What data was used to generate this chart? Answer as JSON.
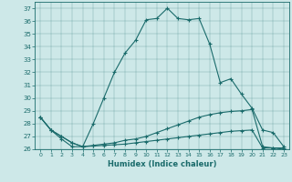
{
  "xlabel": "Humidex (Indice chaleur)",
  "bg_color": "#cde8e8",
  "line_color": "#1a6b6b",
  "xlim": [
    -0.5,
    23.5
  ],
  "ylim": [
    26,
    37.5
  ],
  "yticks": [
    26,
    27,
    28,
    29,
    30,
    31,
    32,
    33,
    34,
    35,
    36,
    37
  ],
  "xticks": [
    0,
    1,
    2,
    3,
    4,
    5,
    6,
    7,
    8,
    9,
    10,
    11,
    12,
    13,
    14,
    15,
    16,
    17,
    18,
    19,
    20,
    21,
    22,
    23
  ],
  "series1": [
    28.5,
    27.5,
    26.8,
    26.2,
    26.2,
    28.0,
    30.0,
    32.0,
    33.5,
    34.5,
    36.1,
    36.2,
    37.0,
    36.2,
    36.1,
    36.2,
    34.2,
    31.2,
    31.5,
    30.3,
    29.2,
    27.5,
    27.3,
    26.2
  ],
  "series2": [
    28.5,
    27.5,
    27.0,
    26.5,
    26.2,
    26.3,
    26.4,
    26.5,
    26.7,
    26.8,
    27.0,
    27.3,
    27.6,
    27.9,
    28.2,
    28.5,
    28.7,
    28.85,
    28.95,
    29.0,
    29.1,
    26.2,
    26.1,
    26.1
  ],
  "series3": [
    28.5,
    27.5,
    27.0,
    26.5,
    26.2,
    26.25,
    26.3,
    26.35,
    26.4,
    26.5,
    26.6,
    26.7,
    26.8,
    26.9,
    27.0,
    27.1,
    27.2,
    27.3,
    27.4,
    27.45,
    27.5,
    26.1,
    26.1,
    26.0
  ]
}
